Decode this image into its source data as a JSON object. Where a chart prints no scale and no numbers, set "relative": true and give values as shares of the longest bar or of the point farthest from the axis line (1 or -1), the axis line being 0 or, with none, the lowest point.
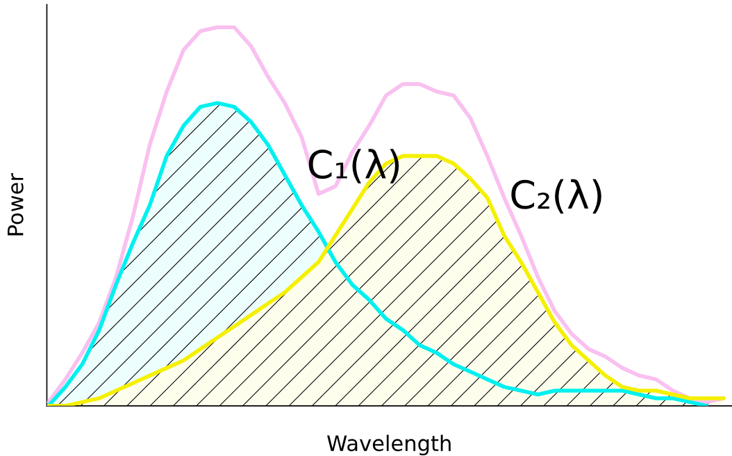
{
  "chart_data": {
    "type": "line",
    "relative": true,
    "xlabel": "Wavelength",
    "ylabel": "Power",
    "categories": [
      null,
      null,
      null,
      null,
      null,
      null,
      null,
      null,
      null,
      null,
      null,
      null,
      null,
      null,
      null,
      null,
      null,
      null,
      null,
      null,
      null,
      null,
      null,
      null,
      null,
      null,
      null,
      null,
      null,
      null,
      null,
      null,
      null,
      null,
      null,
      null,
      null,
      null,
      null,
      null,
      null
    ],
    "series": [
      {
        "color": "#f9c0f0",
        "values": [
          0.01,
          0.07,
          0.14,
          0.22,
          0.34,
          0.5,
          0.69,
          0.83,
          0.94,
          0.99,
          1,
          1,
          0.95,
          0.87,
          0.8,
          0.71,
          0.56,
          0.58,
          0.67,
          0.74,
          0.82,
          0.85,
          0.85,
          0.83,
          0.82,
          0.76,
          0.66,
          0.55,
          0.45,
          0.34,
          0.25,
          0.19,
          0.15,
          0.13,
          0.1,
          0.08,
          0.07,
          0.04,
          0.02,
          0.01,
          0.02
        ]
      },
      {
        "name": "C₁(λ)",
        "type": "area",
        "color": "#00f0f0",
        "values": [
          0,
          0.05,
          0.11,
          0.2,
          0.32,
          0.43,
          0.53,
          0.66,
          0.74,
          0.79,
          0.8,
          0.79,
          0.75,
          0.69,
          0.61,
          0.53,
          0.46,
          0.38,
          0.32,
          0.28,
          0.23,
          0.2,
          0.16,
          0.14,
          0.11,
          0.09,
          0.07,
          0.05,
          0.04,
          0.03,
          0.04,
          0.04,
          0.04,
          0.04,
          0.04,
          0.03,
          0.02,
          0.02,
          0.01,
          0,
          null
        ]
      },
      {
        "name": "C₂(λ)",
        "type": "area",
        "color": "#f5f000",
        "values": [
          0,
          0,
          0.01,
          0.02,
          0.04,
          0.06,
          0.08,
          0.1,
          0.12,
          0.15,
          0.18,
          0.21,
          0.24,
          0.27,
          0.3,
          0.34,
          0.38,
          0.45,
          0.52,
          0.59,
          0.64,
          0.66,
          0.66,
          0.66,
          0.64,
          0.6,
          0.55,
          0.45,
          0.38,
          0.3,
          0.22,
          0.16,
          0.12,
          0.08,
          0.05,
          0.04,
          0.04,
          0.03,
          0.02,
          0.02,
          0.02
        ]
      }
    ]
  }
}
